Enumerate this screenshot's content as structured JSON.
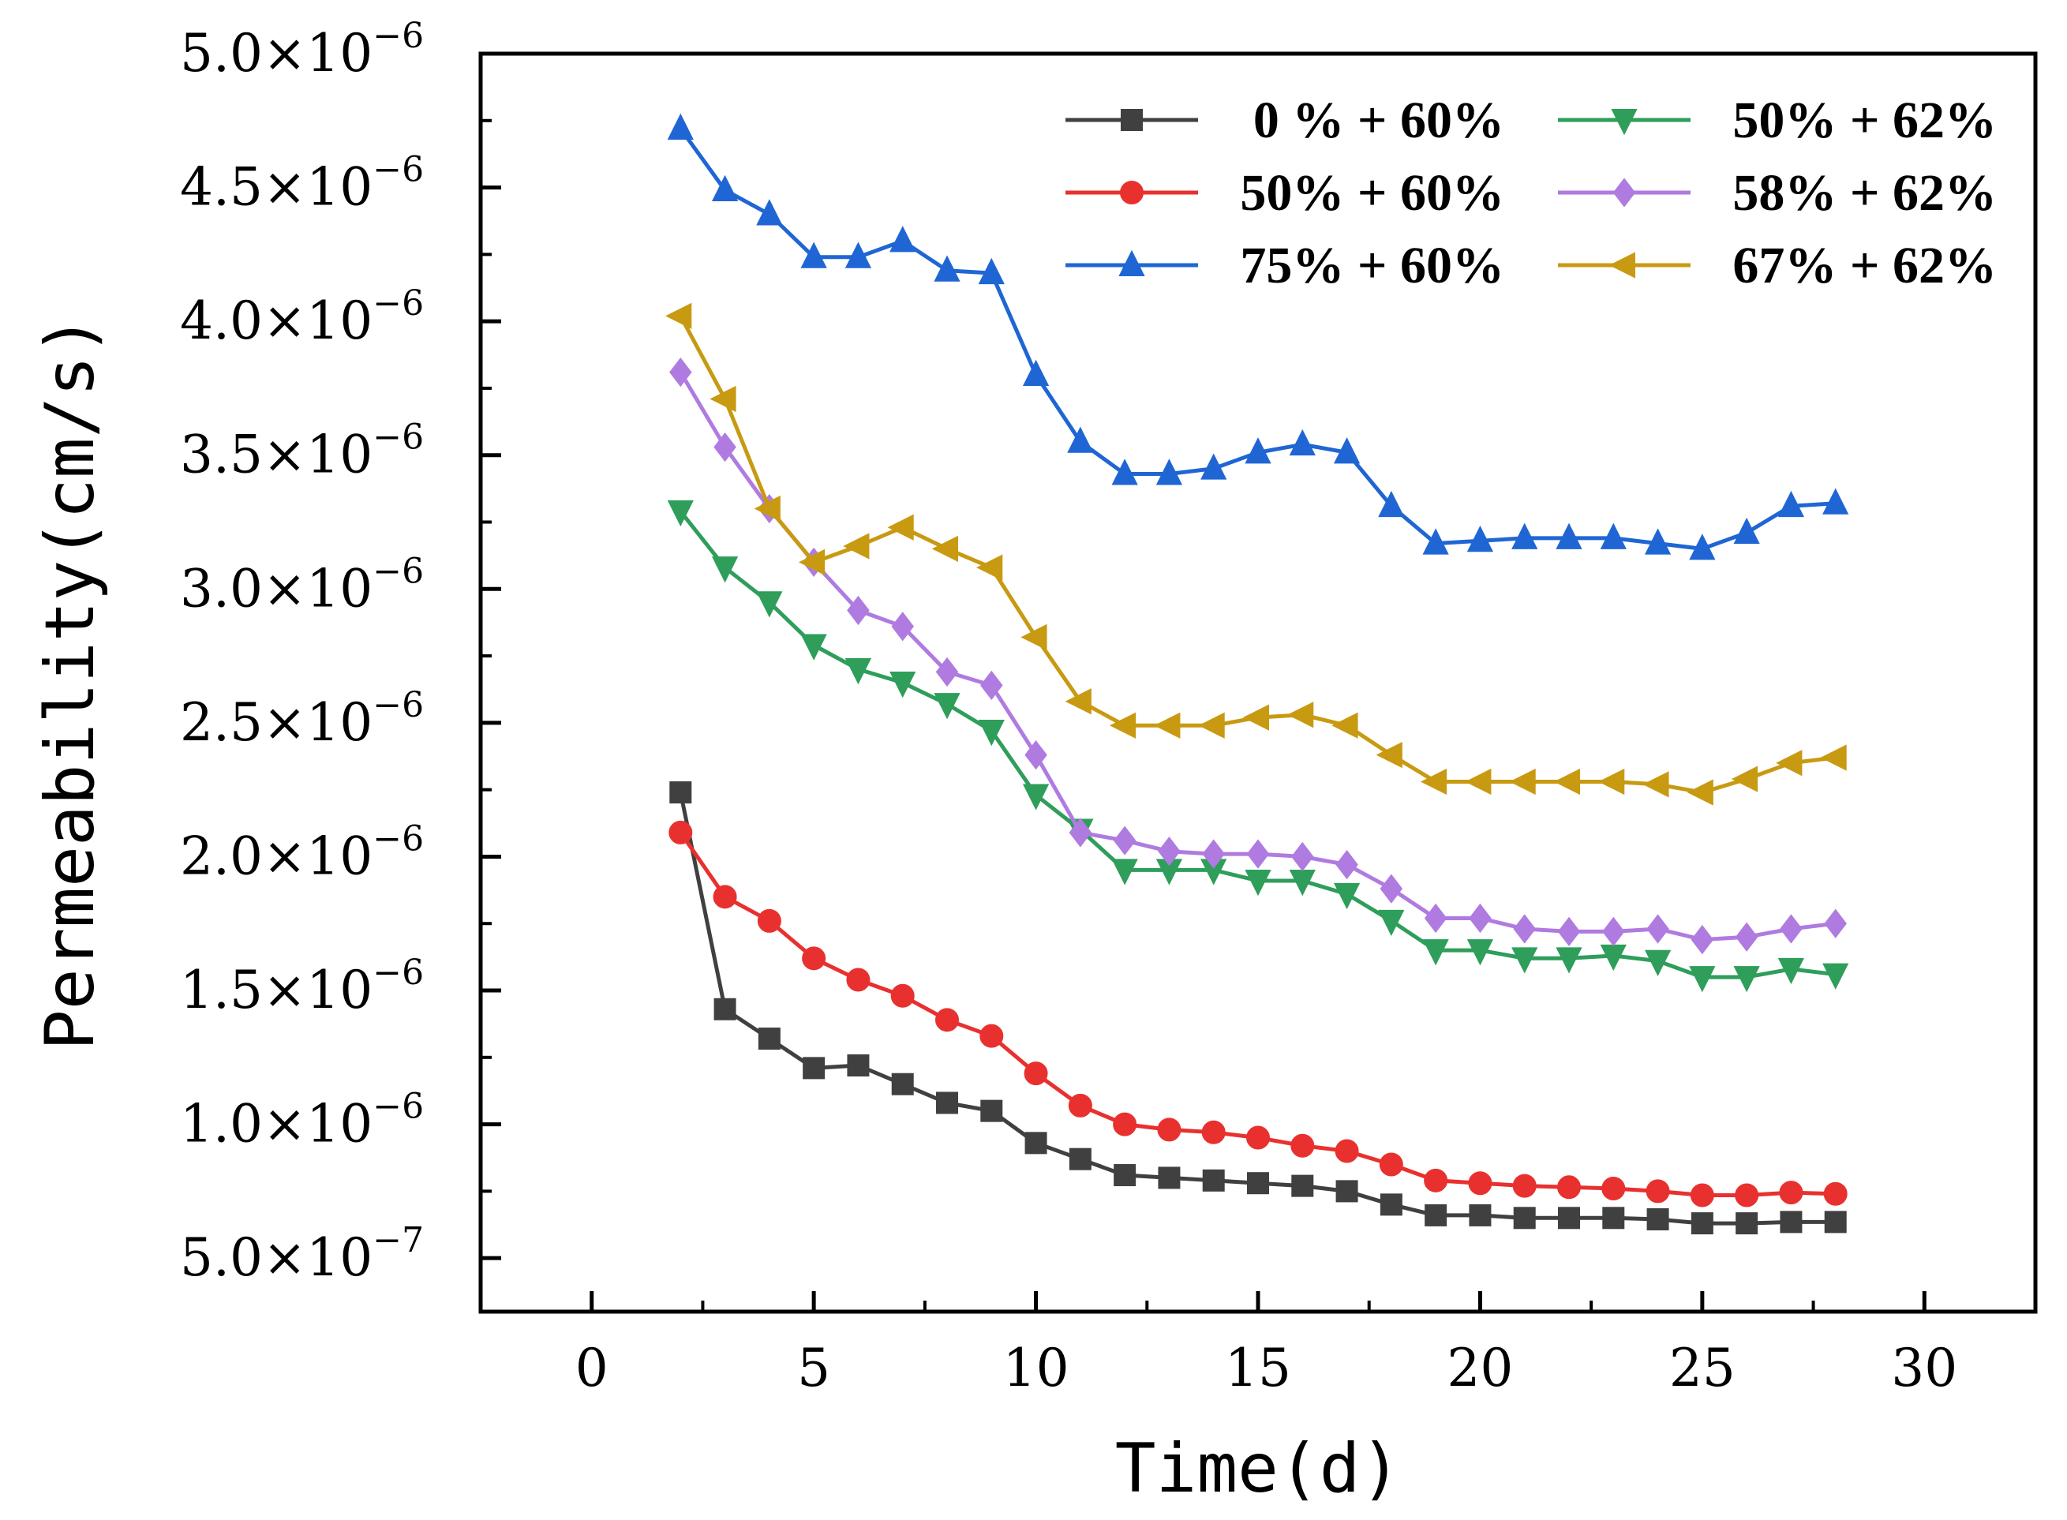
{
  "chart_data": {
    "type": "line",
    "title": "",
    "xlabel": "Time(d)",
    "ylabel": "Permeability(cm/s)",
    "xlim": [
      -2.5,
      32.5
    ],
    "ylim": [
      3e-07,
      5e-06
    ],
    "xticks": [
      0,
      5,
      10,
      15,
      20,
      25,
      30
    ],
    "xtick_labels": [
      "0",
      "5",
      "10",
      "15",
      "20",
      "25",
      "30"
    ],
    "yticks": [
      {
        "value": 5e-07,
        "mantissa": "5.0×10",
        "exponent": "−7"
      },
      {
        "value": 1e-06,
        "mantissa": "1.0×10",
        "exponent": "−6"
      },
      {
        "value": 1.5e-06,
        "mantissa": "1.5×10",
        "exponent": "−6"
      },
      {
        "value": 2e-06,
        "mantissa": "2.0×10",
        "exponent": "−6"
      },
      {
        "value": 2.5e-06,
        "mantissa": "2.5×10",
        "exponent": "−6"
      },
      {
        "value": 3e-06,
        "mantissa": "3.0×10",
        "exponent": "−6"
      },
      {
        "value": 3.5e-06,
        "mantissa": "3.5×10",
        "exponent": "−6"
      },
      {
        "value": 4e-06,
        "mantissa": "4.0×10",
        "exponent": "−6"
      },
      {
        "value": 4.5e-06,
        "mantissa": "4.5×10",
        "exponent": "−6"
      },
      {
        "value": 5e-06,
        "mantissa": "5.0×10",
        "exponent": "−6"
      }
    ],
    "grid": false,
    "legend_position": "top-right",
    "x": [
      2,
      3,
      4,
      5,
      6,
      7,
      8,
      9,
      10,
      11,
      12,
      13,
      14,
      15,
      16,
      17,
      18,
      19,
      20,
      21,
      22,
      23,
      24,
      25,
      26,
      27,
      28
    ],
    "series": [
      {
        "name": "0 % + 60%",
        "color": "#404040",
        "marker": "square",
        "values": [
          2.24e-06,
          1.43e-06,
          1.32e-06,
          1.21e-06,
          1.22e-06,
          1.15e-06,
          1.08e-06,
          1.05e-06,
          9.3e-07,
          8.7e-07,
          8.1e-07,
          8e-07,
          7.9e-07,
          7.8e-07,
          7.7e-07,
          7.5e-07,
          7e-07,
          6.6e-07,
          6.6e-07,
          6.5e-07,
          6.5e-07,
          6.5e-07,
          6.45e-07,
          6.3e-07,
          6.3e-07,
          6.35e-07,
          6.35e-07
        ]
      },
      {
        "name": "50% + 60%",
        "color": "#e8312f",
        "marker": "circle",
        "values": [
          2.09e-06,
          1.85e-06,
          1.76e-06,
          1.62e-06,
          1.54e-06,
          1.48e-06,
          1.39e-06,
          1.33e-06,
          1.19e-06,
          1.07e-06,
          1e-06,
          9.8e-07,
          9.7e-07,
          9.5e-07,
          9.2e-07,
          9e-07,
          8.5e-07,
          7.9e-07,
          7.8e-07,
          7.7e-07,
          7.65e-07,
          7.6e-07,
          7.5e-07,
          7.35e-07,
          7.35e-07,
          7.45e-07,
          7.4e-07
        ]
      },
      {
        "name": "75% + 60%",
        "color": "#1f66d4",
        "marker": "triangle-up",
        "values": [
          4.72e-06,
          4.49e-06,
          4.4e-06,
          4.24e-06,
          4.24e-06,
          4.3e-06,
          4.19e-06,
          4.18e-06,
          3.8e-06,
          3.55e-06,
          3.43e-06,
          3.43e-06,
          3.45e-06,
          3.51e-06,
          3.54e-06,
          3.51e-06,
          3.31e-06,
          3.17e-06,
          3.18e-06,
          3.19e-06,
          3.19e-06,
          3.19e-06,
          3.17e-06,
          3.15e-06,
          3.21e-06,
          3.31e-06,
          3.32e-06
        ]
      },
      {
        "name": "50% + 62%",
        "color": "#2e9e5a",
        "marker": "triangle-down",
        "values": [
          3.29e-06,
          3.08e-06,
          2.95e-06,
          2.79e-06,
          2.7e-06,
          2.65e-06,
          2.57e-06,
          2.47e-06,
          2.23e-06,
          2.1e-06,
          1.95e-06,
          1.95e-06,
          1.95e-06,
          1.91e-06,
          1.91e-06,
          1.86e-06,
          1.76e-06,
          1.65e-06,
          1.65e-06,
          1.62e-06,
          1.62e-06,
          1.63e-06,
          1.61e-06,
          1.55e-06,
          1.55e-06,
          1.58e-06,
          1.56e-06
        ]
      },
      {
        "name": "58% + 62%",
        "color": "#b07be0",
        "marker": "diamond",
        "values": [
          3.81e-06,
          3.53e-06,
          3.3e-06,
          3.1e-06,
          2.92e-06,
          2.86e-06,
          2.69e-06,
          2.64e-06,
          2.38e-06,
          2.09e-06,
          2.06e-06,
          2.02e-06,
          2.01e-06,
          2.01e-06,
          2e-06,
          1.97e-06,
          1.88e-06,
          1.77e-06,
          1.77e-06,
          1.73e-06,
          1.72e-06,
          1.72e-06,
          1.73e-06,
          1.69e-06,
          1.7e-06,
          1.73e-06,
          1.75e-06
        ]
      },
      {
        "name": "67% + 62%",
        "color": "#c89a12",
        "marker": "triangle-left",
        "values": [
          4.02e-06,
          3.71e-06,
          3.3e-06,
          3.1e-06,
          3.16e-06,
          3.23e-06,
          3.15e-06,
          3.08e-06,
          2.82e-06,
          2.58e-06,
          2.49e-06,
          2.49e-06,
          2.49e-06,
          2.52e-06,
          2.53e-06,
          2.49e-06,
          2.38e-06,
          2.28e-06,
          2.28e-06,
          2.28e-06,
          2.28e-06,
          2.28e-06,
          2.27e-06,
          2.24e-06,
          2.29e-06,
          2.35e-06,
          2.37e-06
        ]
      }
    ]
  }
}
